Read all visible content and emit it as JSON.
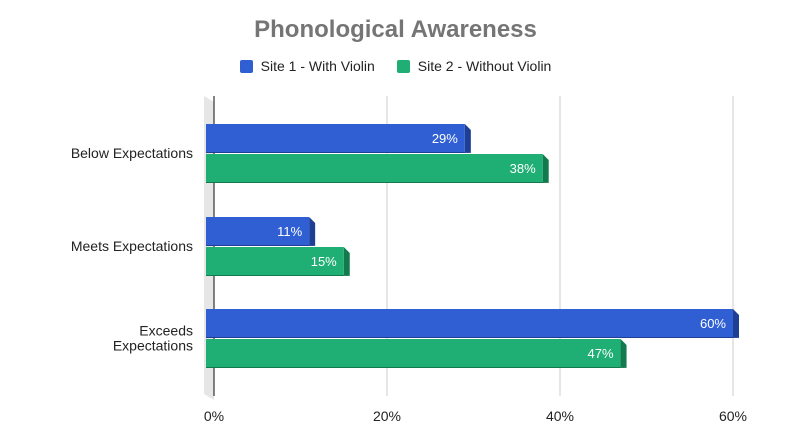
{
  "chart_data": {
    "type": "bar",
    "orientation": "horizontal",
    "title": "Phonological Awareness",
    "categories": [
      "Below Expectations",
      "Meets Expectations",
      "Exceeds Expectations"
    ],
    "series": [
      {
        "name": "Site 1 - With Violin",
        "values": [
          29,
          11,
          60
        ],
        "labels": [
          "29%",
          "11%",
          "60%"
        ],
        "color": "#2f5fd3",
        "shade": "#1f3f94"
      },
      {
        "name": "Site 2 - Without Violin",
        "values": [
          38,
          15,
          47
        ],
        "labels": [
          "38%",
          "15%",
          "47%"
        ],
        "color": "#1fae73",
        "shade": "#137a4e"
      }
    ],
    "xlim": [
      0,
      60
    ],
    "xticks": [
      0,
      20,
      40,
      60
    ],
    "xtick_labels": [
      "0%",
      "20%",
      "40%",
      "60%"
    ],
    "grid": true,
    "legend_position": "top"
  }
}
